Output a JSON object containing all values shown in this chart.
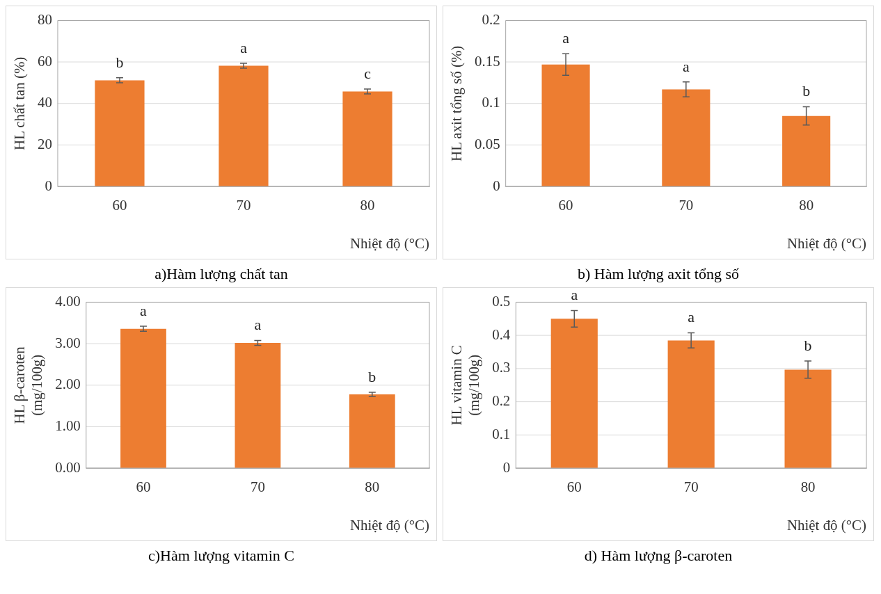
{
  "chart_data": [
    {
      "type": "bar",
      "title": "a)Hàm lượng chất tan",
      "xlabel": "Nhiệt độ (°C)",
      "ylabel": "HL chất tan (%)",
      "categories": [
        "60",
        "70",
        "80"
      ],
      "values": [
        51.2,
        58.2,
        45.8
      ],
      "errors": [
        1.2,
        1.2,
        1.2
      ],
      "value_labels": [
        "b",
        "a",
        "c"
      ],
      "color": "#ed7d31",
      "ylim": [
        0,
        80
      ],
      "yticks": [
        0,
        20,
        40,
        60,
        80
      ],
      "grid": "y"
    },
    {
      "type": "bar",
      "title": "b) Hàm lượng axit tổng số",
      "xlabel": "Nhiệt độ (°C)",
      "ylabel": "HL axit tổng số (%)",
      "categories": [
        "60",
        "70",
        "80"
      ],
      "values": [
        0.147,
        0.117,
        0.085
      ],
      "errors": [
        0.013,
        0.009,
        0.011
      ],
      "value_labels": [
        "a",
        "a",
        "b"
      ],
      "color": "#ed7d31",
      "ylim": [
        0,
        0.2
      ],
      "yticks": [
        0,
        0.05,
        0.1,
        0.15,
        0.2
      ],
      "grid": "y"
    },
    {
      "type": "bar",
      "title": "c)Hàm lượng vitamin C",
      "xlabel": "Nhiệt độ (°C)",
      "ylabel": "HL β-caroten\n(mg/100g)",
      "categories": [
        "60",
        "70",
        "80"
      ],
      "values": [
        3.36,
        3.02,
        1.78
      ],
      "errors": [
        0.06,
        0.06,
        0.05
      ],
      "value_labels": [
        "a",
        "a",
        "b"
      ],
      "color": "#ed7d31",
      "ylim": [
        0,
        4
      ],
      "yticks": [
        {
          "value": 0,
          "label": "0.00"
        },
        {
          "value": 1,
          "label": "1.00"
        },
        {
          "value": 2,
          "label": "2.00"
        },
        {
          "value": 3,
          "label": "3.00"
        },
        {
          "value": 4,
          "label": "4.00"
        }
      ],
      "grid": "y"
    },
    {
      "type": "bar",
      "title": "d) Hàm lượng β-caroten",
      "xlabel": "Nhiệt độ (°C)",
      "ylabel": "HL vitamin C\n(mg/100g)",
      "categories": [
        "60",
        "70",
        "80"
      ],
      "values": [
        0.45,
        0.385,
        0.297
      ],
      "errors": [
        0.025,
        0.023,
        0.026
      ],
      "value_labels": [
        "a",
        "a",
        "b"
      ],
      "color": "#ed7d31",
      "ylim": [
        0,
        0.5
      ],
      "yticks": [
        0,
        0.1,
        0.2,
        0.3,
        0.4,
        0.5
      ],
      "grid": "y"
    }
  ]
}
